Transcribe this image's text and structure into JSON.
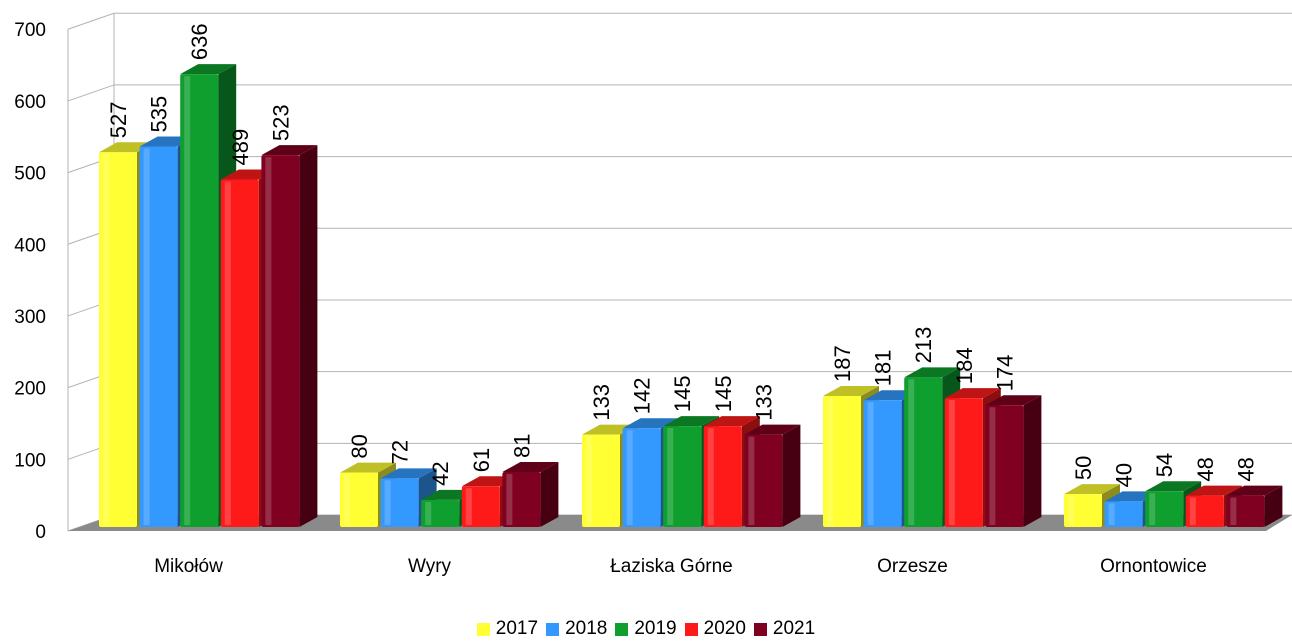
{
  "chart_data": {
    "type": "bar",
    "title": "",
    "xlabel": "",
    "ylabel": "",
    "categories": [
      "Mikołów",
      "Wyry",
      "Łaziska Górne",
      "Orzesze",
      "Ornontowice"
    ],
    "series": [
      {
        "name": "2017",
        "color": "#ffff33",
        "values": [
          527,
          80,
          133,
          187,
          50
        ]
      },
      {
        "name": "2018",
        "color": "#3399ff",
        "values": [
          535,
          72,
          142,
          181,
          40
        ]
      },
      {
        "name": "2019",
        "color": "#0f9f2f",
        "values": [
          636,
          42,
          145,
          213,
          54
        ]
      },
      {
        "name": "2020",
        "color": "#ff1a1a",
        "values": [
          489,
          61,
          145,
          184,
          48
        ]
      },
      {
        "name": "2021",
        "color": "#7f0020",
        "values": [
          523,
          81,
          133,
          174,
          48
        ]
      }
    ],
    "ylim": [
      0,
      700
    ],
    "yticks": [
      0,
      100,
      200,
      300,
      400,
      500,
      600,
      700
    ],
    "grid": true,
    "legend_position": "bottom",
    "style": "3d-column"
  }
}
